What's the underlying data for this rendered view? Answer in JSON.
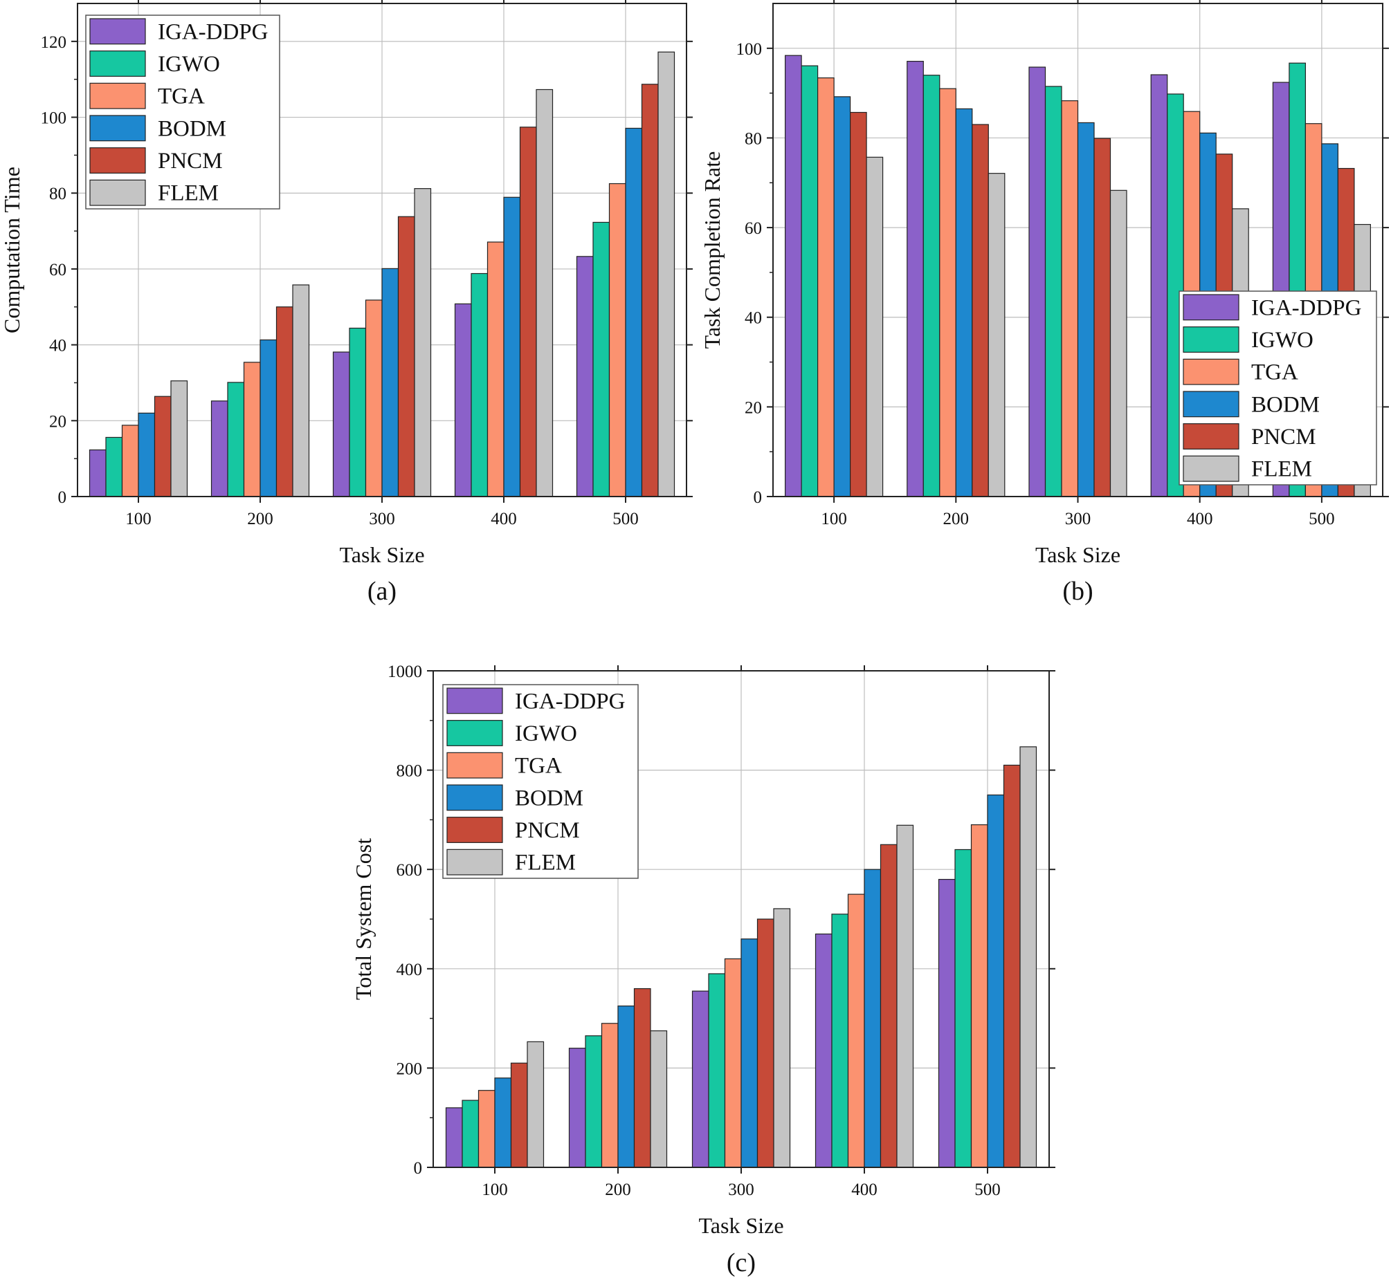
{
  "series_colors": [
    "#8b61c9",
    "#16c7a1",
    "#fb9270",
    "#1e88cf",
    "#c64a38",
    "#c4c4c4"
  ],
  "chart_data": [
    {
      "type": "bar",
      "caption": "(a)",
      "xlabel": "Task Size",
      "ylabel": "Computation Time",
      "categories": [
        "100",
        "200",
        "300",
        "400",
        "500"
      ],
      "ylim": [
        0,
        130
      ],
      "yticks": [
        0,
        20,
        40,
        60,
        80,
        100,
        120
      ],
      "grid": true,
      "legend": "top-left",
      "series": [
        {
          "name": "IGA-DDPG",
          "values": [
            12.3,
            25.2,
            38.1,
            50.8,
            63.3
          ]
        },
        {
          "name": "IGWO",
          "values": [
            15.6,
            30.1,
            44.4,
            58.8,
            72.3
          ]
        },
        {
          "name": "TGA",
          "values": [
            18.8,
            35.4,
            51.8,
            67.1,
            82.5
          ]
        },
        {
          "name": "BODM",
          "values": [
            22.0,
            41.3,
            60.1,
            78.9,
            97.1
          ]
        },
        {
          "name": "PNCM",
          "values": [
            26.4,
            50.0,
            73.8,
            97.4,
            108.7
          ]
        },
        {
          "name": "FLEM",
          "values": [
            30.5,
            55.8,
            81.2,
            107.3,
            117.2
          ]
        }
      ]
    },
    {
      "type": "bar",
      "caption": "(b)",
      "xlabel": "Task Size",
      "ylabel": "Task Completion Rate",
      "categories": [
        "100",
        "200",
        "300",
        "400",
        "500"
      ],
      "ylim": [
        0,
        110
      ],
      "yticks": [
        0,
        20,
        40,
        60,
        80,
        100
      ],
      "grid": true,
      "legend": "bottom-right",
      "series": [
        {
          "name": "IGA-DDPG",
          "values": [
            98.4,
            97.1,
            95.8,
            94.1,
            92.4
          ]
        },
        {
          "name": "IGWO",
          "values": [
            96.1,
            94.0,
            91.5,
            89.8,
            96.7
          ]
        },
        {
          "name": "TGA",
          "values": [
            93.4,
            91.0,
            88.3,
            85.9,
            83.2
          ]
        },
        {
          "name": "BODM",
          "values": [
            89.2,
            86.5,
            83.4,
            81.1,
            78.7
          ]
        },
        {
          "name": "PNCM",
          "values": [
            85.7,
            83.0,
            79.9,
            76.4,
            73.2
          ]
        },
        {
          "name": "FLEM",
          "values": [
            75.7,
            72.1,
            68.3,
            64.2,
            60.7
          ]
        }
      ]
    },
    {
      "type": "bar",
      "caption": "(c)",
      "xlabel": "Task Size",
      "ylabel": "Total System Cost",
      "categories": [
        "100",
        "200",
        "300",
        "400",
        "500"
      ],
      "ylim": [
        0,
        1000
      ],
      "yticks": [
        0,
        200,
        400,
        600,
        800,
        1000
      ],
      "grid": true,
      "legend": "top-left",
      "series": [
        {
          "name": "IGA-DDPG",
          "values": [
            120,
            240,
            355,
            470,
            580
          ]
        },
        {
          "name": "IGWO",
          "values": [
            135,
            265,
            390,
            510,
            640
          ]
        },
        {
          "name": "TGA",
          "values": [
            155,
            290,
            420,
            550,
            690
          ]
        },
        {
          "name": "BODM",
          "values": [
            180,
            325,
            460,
            600,
            750
          ]
        },
        {
          "name": "PNCM",
          "values": [
            210,
            360,
            500,
            650,
            810
          ]
        },
        {
          "name": "FLEM",
          "values": [
            253,
            275,
            521,
            689,
            847
          ]
        }
      ]
    }
  ]
}
